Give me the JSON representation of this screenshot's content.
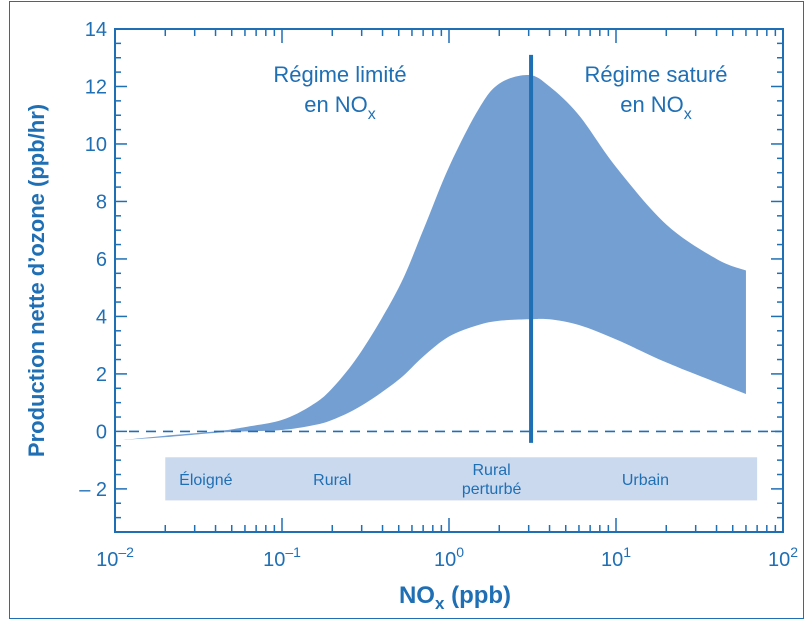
{
  "chart_data": {
    "type": "area",
    "xscale": "log",
    "xlim": [
      0.01,
      100
    ],
    "ylim": [
      -3.5,
      14
    ],
    "ylabel": "Production nette d’ozone (ppb/hr)",
    "xlabel": {
      "main": "NO",
      "sub": "x",
      "tail": " (ppb)"
    },
    "yticks": [
      {
        "value": 14,
        "label": "14"
      },
      {
        "value": 12,
        "label": "12"
      },
      {
        "value": 10,
        "label": "10"
      },
      {
        "value": 8,
        "label": "8"
      },
      {
        "value": 6,
        "label": "6"
      },
      {
        "value": 4,
        "label": "4"
      },
      {
        "value": 2,
        "label": "2"
      },
      {
        "value": 0,
        "label": "0"
      },
      {
        "value": -2,
        "label": "– 2"
      }
    ],
    "xticks": [
      {
        "value": 0.01,
        "base": "10",
        "exp": "–2"
      },
      {
        "value": 0.1,
        "base": "10",
        "exp": "–1"
      },
      {
        "value": 1,
        "base": "10",
        "exp": "0"
      },
      {
        "value": 10,
        "base": "10",
        "exp": "1"
      },
      {
        "value": 100,
        "base": "10",
        "exp": "2"
      }
    ],
    "band": {
      "x": [
        0.011,
        0.02,
        0.04,
        0.06,
        0.1,
        0.15,
        0.2,
        0.3,
        0.5,
        0.7,
        1.0,
        1.5,
        2.0,
        3.0,
        4.0,
        6.0,
        10,
        20,
        40,
        60
      ],
      "upper": [
        -0.3,
        -0.15,
        0.0,
        0.15,
        0.4,
        0.9,
        1.5,
        2.8,
        5.0,
        7.0,
        9.2,
        11.2,
        12.1,
        12.4,
        12.0,
        11.0,
        9.2,
        7.2,
        6.0,
        5.6
      ],
      "lower": [
        -0.3,
        -0.2,
        -0.05,
        0.0,
        0.05,
        0.2,
        0.4,
        0.9,
        1.8,
        2.6,
        3.3,
        3.7,
        3.85,
        3.9,
        3.9,
        3.7,
        3.2,
        2.4,
        1.7,
        1.3
      ]
    },
    "zero_line": 0,
    "divider_x": 3.1,
    "regime_labels": {
      "left": {
        "line1": "Régime limité",
        "line2": "en NO",
        "sub": "x"
      },
      "right": {
        "line1": "Régime saturé",
        "line2": "en NO",
        "sub": "x"
      }
    },
    "zones": {
      "band_range": [
        0.02,
        70
      ],
      "band_y": [
        -2.4,
        -0.9
      ],
      "labels": [
        {
          "text": "Éloigné",
          "x": 0.035
        },
        {
          "text": "Rural",
          "x": 0.2
        },
        {
          "text": "Rural",
          "line2": "perturbé",
          "x": 1.8
        },
        {
          "text": "Urbain",
          "x": 15
        }
      ]
    },
    "colors": {
      "band": "#739fd3",
      "axis": "#1f6fb5",
      "zone_bar": "#cbd9ee",
      "divider": "#1f6fb5"
    }
  }
}
